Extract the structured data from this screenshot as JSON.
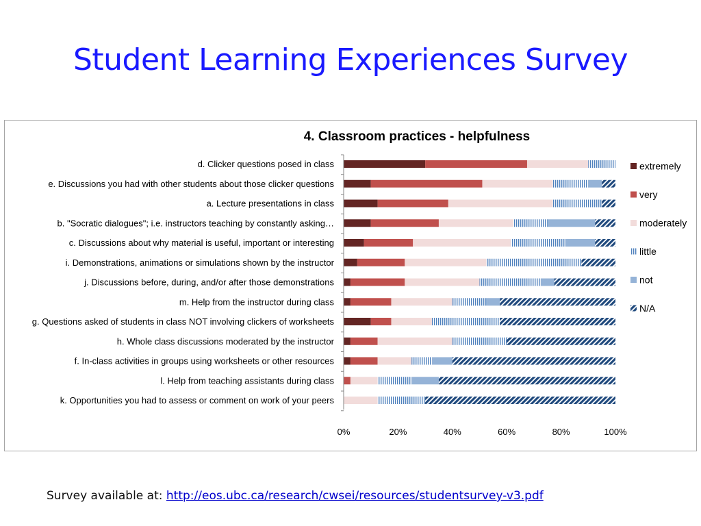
{
  "page": {
    "title": "Student Learning Experiences Survey",
    "footer_label": "Survey available at:",
    "footer_link": "http://eos.ubc.ca/research/cwsei/resources/studentsurvey-v3.pdf"
  },
  "chart_data": {
    "type": "bar",
    "orientation": "horizontal",
    "stacked": "100%",
    "title": "4. Classroom practices - helpfulness",
    "categories": [
      "d. Clicker questions posed in class",
      "e. Discussions you had with other students about those clicker questions",
      "a. Lecture presentations in class",
      "b. \"Socratic dialogues\"; i.e. instructors teaching by constantly asking…",
      "c. Discussions about why material is useful, important or interesting",
      "i. Demonstrations, animations or simulations shown by the instructor",
      "j. Discussions before, during, and/or after those demonstrations",
      "m. Help from the instructor during class",
      "g. Questions asked of students in class NOT involving clickers of worksheets",
      "h. Whole class discussions moderated by the instructor",
      "f. In-class activities in groups using worksheets or other resources",
      "l. Help from teaching assistants during class",
      "k. Opportunities you had to assess or comment on work of your peers"
    ],
    "series": [
      {
        "name": "extremely",
        "color": "#632523",
        "pattern": "solid",
        "values": [
          30,
          10,
          12.5,
          10,
          7.5,
          5,
          2.5,
          2.5,
          10,
          2.5,
          2.5,
          0,
          0
        ]
      },
      {
        "name": "very",
        "color": "#c0504d",
        "pattern": "solid",
        "values": [
          37.5,
          41,
          26,
          25,
          18,
          17.5,
          20,
          15,
          7.5,
          10,
          10,
          2.5,
          0
        ]
      },
      {
        "name": "moderately",
        "color": "#f2dcdb",
        "pattern": "solid",
        "values": [
          22.5,
          26,
          38.5,
          27.5,
          36,
          30,
          27.5,
          22.5,
          15,
          27.5,
          12.5,
          10,
          12.5
        ]
      },
      {
        "name": "little",
        "color": "#4f81bd",
        "pattern": "vertical-lines",
        "values": [
          10,
          13,
          18,
          12.5,
          20,
          35,
          22.5,
          12.5,
          25,
          20,
          7.5,
          12.5,
          17.5
        ]
      },
      {
        "name": "not",
        "color": "#95b3d7",
        "pattern": "solid",
        "values": [
          0,
          5,
          0,
          17.5,
          11,
          0,
          5,
          5,
          0,
          0,
          7.5,
          10,
          0
        ]
      },
      {
        "name": "N/A",
        "color": "#1f497d",
        "pattern": "diagonal-lines",
        "values": [
          0,
          5,
          5,
          7.5,
          7.5,
          12.5,
          22.5,
          42.5,
          42.5,
          40,
          60,
          65,
          70
        ]
      }
    ],
    "xlim": [
      0,
      100
    ],
    "xticks": [
      "0%",
      "20%",
      "40%",
      "60%",
      "80%",
      "100%"
    ],
    "xlabel": "",
    "ylabel": "",
    "grid": false,
    "legend_position": "right"
  }
}
